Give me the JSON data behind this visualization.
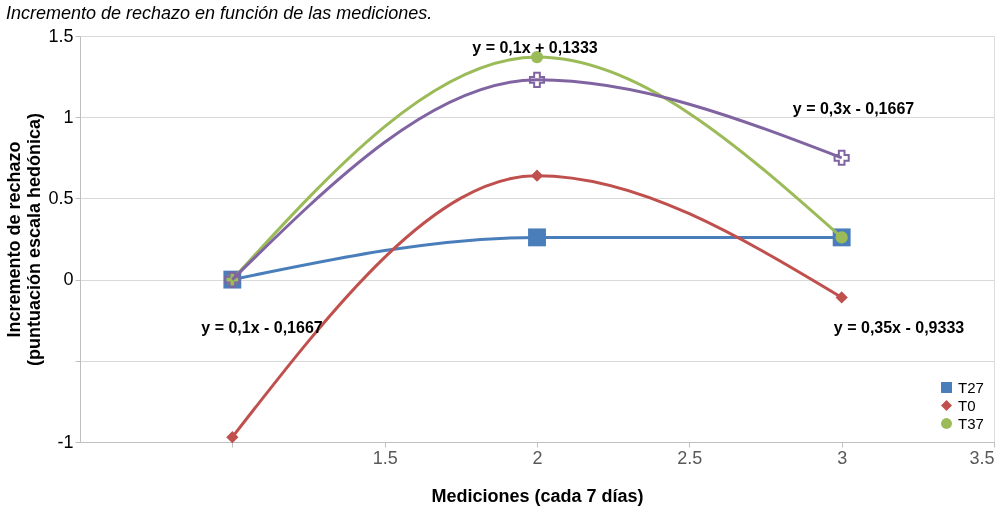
{
  "chart_data": {
    "type": "line",
    "title": "Incremento de rechazo en función de las mediciones.",
    "xlabel": "Mediciones (cada 7 días)",
    "ylabel": "Incremento de rechazo (puntuación escala hedónica)",
    "x": [
      1,
      2,
      3
    ],
    "series": [
      {
        "name": "T27",
        "color": "#4a7ebb",
        "marker": "square",
        "values": [
          0,
          0.26,
          0.26
        ]
      },
      {
        "name": "T0",
        "color": "#c0504d",
        "marker": "diamond",
        "values": [
          -0.97,
          0.64,
          -0.11
        ]
      },
      {
        "name": "T37",
        "color": "#9bbb59",
        "marker": "circle",
        "values": [
          0,
          1.37,
          0.26
        ]
      },
      {
        "color": "#8064a2",
        "marker": "cross",
        "values": [
          0,
          1.23,
          0.75
        ]
      }
    ],
    "xlim": [
      0.5,
      3.5
    ],
    "xticks": [
      {
        "value": 1,
        "label": null
      },
      1.5,
      2,
      2.5,
      3,
      3.5
    ],
    "ylim": [
      -1,
      1.5
    ],
    "yticks": [
      -1,
      {
        "value": -0.5,
        "label": null
      },
      0,
      0.5,
      1,
      1.5
    ],
    "grid": "y",
    "legend": "bottom right",
    "annotations": [
      "y = 0,1x + 0,1333",
      "y = 0,3x - 0,1667",
      "y = 0,1x - 0,1667",
      "y = 0,35x - 0,9333"
    ]
  }
}
